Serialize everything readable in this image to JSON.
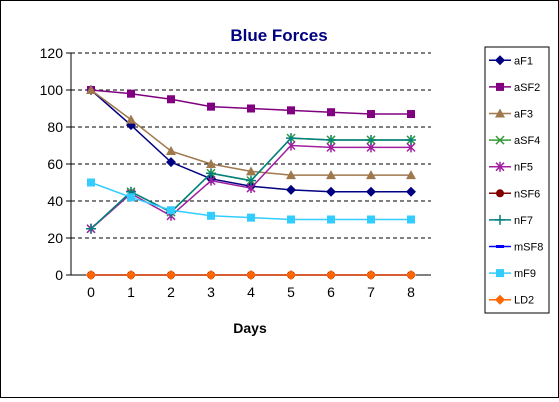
{
  "chart_data": {
    "type": "line",
    "title": "Blue Forces",
    "xlabel": "Days",
    "ylabel": "",
    "x": [
      0,
      1,
      2,
      3,
      4,
      5,
      6,
      7,
      8
    ],
    "ylim": [
      0,
      120
    ],
    "yticks": [
      0,
      20,
      40,
      60,
      80,
      100,
      120
    ],
    "grid": "horizontal-dashed",
    "legend_position": "right",
    "series": [
      {
        "name": "aF1",
        "color": "#000080",
        "marker": "diamond",
        "values": [
          100,
          81,
          61,
          52,
          48,
          46,
          45,
          45,
          45
        ]
      },
      {
        "name": "aSF2",
        "color": "#800080",
        "marker": "square",
        "values": [
          100,
          98,
          95,
          91,
          90,
          89,
          88,
          87,
          87
        ]
      },
      {
        "name": "aF3",
        "color": "#a0784e",
        "marker": "triangle",
        "values": [
          100,
          84,
          67,
          60,
          56,
          54,
          54,
          54,
          54
        ]
      },
      {
        "name": "aSF4",
        "color": "#339933",
        "marker": "x",
        "values": [
          25,
          45,
          34,
          55,
          51,
          74,
          73,
          73,
          73
        ]
      },
      {
        "name": "nF5",
        "color": "#a020a0",
        "marker": "star",
        "values": [
          25,
          44,
          32,
          51,
          47,
          70,
          69,
          69,
          69
        ]
      },
      {
        "name": "nSF6",
        "color": "#800000",
        "marker": "circle",
        "values": [
          0,
          0,
          0,
          0,
          0,
          0,
          0,
          0,
          0
        ]
      },
      {
        "name": "nF7",
        "color": "#008080",
        "marker": "plus",
        "values": [
          25,
          45,
          34,
          55,
          51,
          74,
          73,
          73,
          73
        ]
      },
      {
        "name": "mSF8",
        "color": "#0000ff",
        "marker": "dash",
        "values": [
          0,
          0,
          0,
          0,
          0,
          0,
          0,
          0,
          0
        ]
      },
      {
        "name": "mF9",
        "color": "#33ccff",
        "marker": "square",
        "values": [
          50,
          42,
          35,
          32,
          31,
          30,
          30,
          30,
          30
        ]
      },
      {
        "name": "LD2",
        "color": "#ff6600",
        "marker": "diamond",
        "values": [
          0,
          0,
          0,
          0,
          0,
          0,
          0,
          0,
          0
        ]
      }
    ]
  }
}
